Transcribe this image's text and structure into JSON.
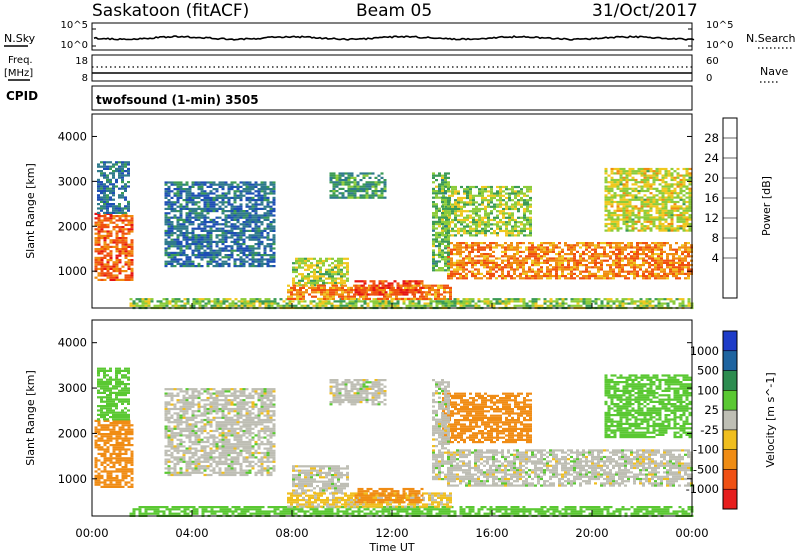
{
  "header": {
    "station": "Saskatoon (fitACF)",
    "beam": "Beam 05",
    "date": "31/Oct/2017"
  },
  "top_panels": {
    "nsky_label": "N.Sky",
    "nsky_ticks": [
      "10^5",
      "10^0"
    ],
    "nsearch_label": "N.Search",
    "nsearch_ticks": [
      "10^5",
      "10^0"
    ],
    "freq_label": "Freq.",
    "freq_unit": "[MHz]",
    "freq_ticks": [
      "18",
      "8"
    ],
    "nave_label": "Nave",
    "nave_ticks": [
      "60",
      "0"
    ],
    "cpid_label": "CPID",
    "cpid_text": "twofsound (1-min) 3505"
  },
  "colors": {
    "power_scale": [
      "#1c1cf0",
      "#1e4fb5",
      "#2f7a8c",
      "#3a9a55",
      "#8ccc3a",
      "#f0c81e",
      "#f08c0f",
      "#f0500f",
      "#e61414"
    ],
    "velocity_scale": [
      "#1e3cc8",
      "#1e64a0",
      "#2d8c50",
      "#5ac832",
      "#bebeb4",
      "#f0be1e",
      "#f08c14",
      "#f05014",
      "#e61e1e"
    ],
    "gray_scatter": "#bebeb4"
  },
  "chart_data": [
    {
      "type": "heatmap",
      "name": "power",
      "ylabel": "Slant Range [km]",
      "xlabel": "",
      "xlim_hours": [
        0,
        24
      ],
      "ylim": [
        180,
        4500
      ],
      "yticks": [
        "4000",
        "3000",
        "2000",
        "1000"
      ],
      "colorbar": {
        "label": "Power [dB]",
        "ticks": [
          "28",
          "24",
          "20",
          "16",
          "12",
          "8",
          "4"
        ],
        "range": [
          0,
          32
        ]
      },
      "regions": [
        {
          "t0": 0.1,
          "t1": 1.6,
          "r0": 800,
          "r1": 2300,
          "v": 26
        },
        {
          "t0": 0.2,
          "t1": 1.5,
          "r0": 2300,
          "r1": 3450,
          "v": 8
        },
        {
          "t0": 1.5,
          "t1": 24,
          "r0": 200,
          "r1": 400,
          "v": 16
        },
        {
          "t0": 8.0,
          "t1": 10.2,
          "r0": 700,
          "r1": 1300,
          "v": 17
        },
        {
          "t0": 7.8,
          "t1": 14.3,
          "r0": 380,
          "r1": 700,
          "v": 24
        },
        {
          "t0": 10.5,
          "t1": 13.2,
          "r0": 500,
          "r1": 800,
          "v": 28
        },
        {
          "t0": 9.5,
          "t1": 11.7,
          "r0": 2650,
          "r1": 3200,
          "v": 12
        },
        {
          "t0": 14.2,
          "t1": 24,
          "r0": 850,
          "r1": 1650,
          "v": 24
        },
        {
          "t0": 14.0,
          "t1": 17.5,
          "r0": 1800,
          "r1": 2900,
          "v": 16
        },
        {
          "t0": 20.5,
          "t1": 23.9,
          "r0": 1900,
          "r1": 3300,
          "v": 18
        },
        {
          "t0": 13.6,
          "t1": 14.3,
          "r0": 1000,
          "r1": 3200,
          "v": 14
        },
        {
          "t0": 2.9,
          "t1": 7.3,
          "r0": 1100,
          "r1": 3000,
          "v": 8
        }
      ]
    },
    {
      "type": "heatmap",
      "name": "velocity",
      "ylabel": "Slant Range [km]",
      "xlabel": "Time UT",
      "xlim_hours": [
        0,
        24
      ],
      "ylim": [
        180,
        4500
      ],
      "xticks": [
        "00:00",
        "04:00",
        "08:00",
        "12:00",
        "16:00",
        "20:00",
        "00:00"
      ],
      "yticks": [
        "4000",
        "3000",
        "2000",
        "1000"
      ],
      "colorbar": {
        "label": "Velocity [m s^-1]",
        "ticks": [
          "1000",
          "500",
          "100",
          "25",
          "-25",
          "-100",
          "-500",
          "-1000"
        ],
        "range": [
          -1200,
          1200
        ]
      },
      "regions": [
        {
          "t0": 0.1,
          "t1": 1.6,
          "r0": 800,
          "r1": 2300,
          "v": -150
        },
        {
          "t0": 0.2,
          "t1": 1.5,
          "r0": 2300,
          "r1": 3450,
          "v": 60
        },
        {
          "t0": 1.5,
          "t1": 24,
          "r0": 200,
          "r1": 400,
          "v": 60
        },
        {
          "t0": 8.0,
          "t1": 10.2,
          "r0": 700,
          "r1": 1300,
          "v": 0
        },
        {
          "t0": 7.8,
          "t1": 14.3,
          "r0": 380,
          "r1": 700,
          "v": -40
        },
        {
          "t0": 10.5,
          "t1": 13.2,
          "r0": 500,
          "r1": 800,
          "v": -150
        },
        {
          "t0": 9.5,
          "t1": 11.7,
          "r0": 2650,
          "r1": 3200,
          "v": 0
        },
        {
          "t0": 14.2,
          "t1": 24,
          "r0": 850,
          "r1": 1650,
          "v": 0
        },
        {
          "t0": 14.0,
          "t1": 17.5,
          "r0": 1800,
          "r1": 2900,
          "v": -200
        },
        {
          "t0": 20.5,
          "t1": 23.9,
          "r0": 1900,
          "r1": 3300,
          "v": 60
        },
        {
          "t0": 13.6,
          "t1": 14.3,
          "r0": 1000,
          "r1": 3200,
          "v": 0
        },
        {
          "t0": 2.9,
          "t1": 7.3,
          "r0": 1100,
          "r1": 3000,
          "v": 0
        }
      ]
    }
  ]
}
